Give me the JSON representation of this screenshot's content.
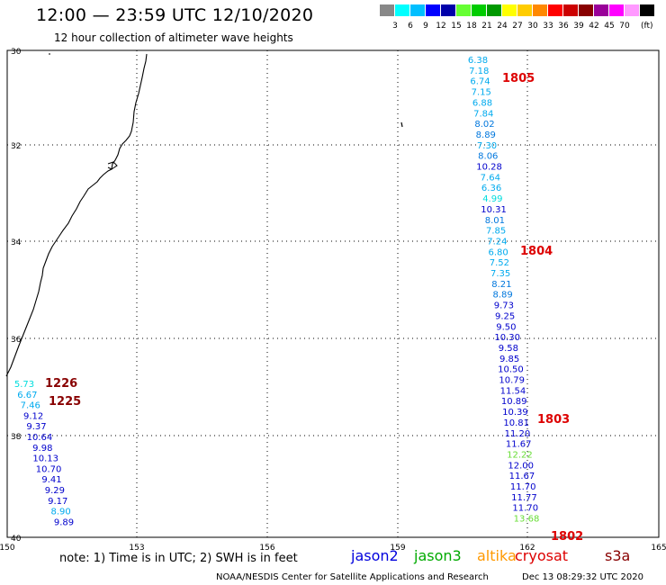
{
  "header": {
    "title": "12:00 — 23:59 UTC 12/10/2020",
    "subtitle": "12 hour collection of altimeter wave heights"
  },
  "legend": {
    "colors": [
      "#888888",
      "#00ffff",
      "#00bfff",
      "#0000ff",
      "#0000aa",
      "#66ff33",
      "#00cc00",
      "#009900",
      "#ffff00",
      "#ffcc00",
      "#ff8800",
      "#ff0000",
      "#cc0000",
      "#880000",
      "#990099",
      "#ff00ff",
      "#ff99ff",
      "#000000"
    ],
    "labels": [
      "3",
      "6",
      "9",
      "12",
      "15",
      "18",
      "21",
      "24",
      "27",
      "30",
      "33",
      "36",
      "39",
      "42",
      "45",
      "70"
    ],
    "unit": "(ft)"
  },
  "map": {
    "lat_labels": [
      "30",
      "32",
      "34",
      "36",
      "38",
      "40"
    ],
    "lon_labels": [
      "150",
      "153",
      "156",
      "159",
      "162",
      "165"
    ]
  },
  "tracks": [
    {
      "color_key": "east",
      "points": [
        {
          "v": "6.38",
          "c": "#00aaee"
        },
        {
          "v": "7.18",
          "c": "#00aaee"
        },
        {
          "v": "6.74",
          "c": "#00aaee"
        },
        {
          "v": "7.15",
          "c": "#00aaee"
        },
        {
          "v": "6.88",
          "c": "#00aaee"
        },
        {
          "v": "7.84",
          "c": "#00aaee"
        },
        {
          "v": "8.02",
          "c": "#0077dd"
        },
        {
          "v": "8.89",
          "c": "#0077dd"
        },
        {
          "v": "7.30",
          "c": "#00aaee"
        },
        {
          "v": "8.06",
          "c": "#0077dd"
        },
        {
          "v": "10.28",
          "c": "#0000cc"
        },
        {
          "v": "7.64",
          "c": "#00aaee"
        },
        {
          "v": "6.36",
          "c": "#00aaee"
        },
        {
          "v": "4.99",
          "c": "#00dddd"
        },
        {
          "v": "10.31",
          "c": "#0000cc"
        },
        {
          "v": "8.01",
          "c": "#0077dd"
        },
        {
          "v": "7.85",
          "c": "#00aaee"
        },
        {
          "v": "7.24",
          "c": "#00aaee"
        },
        {
          "v": "6.80",
          "c": "#00aaee"
        },
        {
          "v": "7.52",
          "c": "#00aaee"
        },
        {
          "v": "7.35",
          "c": "#00aaee"
        },
        {
          "v": "8.21",
          "c": "#0077dd"
        },
        {
          "v": "8.89",
          "c": "#0077dd"
        },
        {
          "v": "9.73",
          "c": "#0000cc"
        },
        {
          "v": "9.25",
          "c": "#0000cc"
        },
        {
          "v": "9.50",
          "c": "#0000cc"
        },
        {
          "v": "10.30",
          "c": "#0000cc"
        },
        {
          "v": "9.58",
          "c": "#0000cc"
        },
        {
          "v": "9.85",
          "c": "#0000cc"
        },
        {
          "v": "10.50",
          "c": "#0000cc"
        },
        {
          "v": "10.79",
          "c": "#0000cc"
        },
        {
          "v": "11.54",
          "c": "#0000cc"
        },
        {
          "v": "10.89",
          "c": "#0000cc"
        },
        {
          "v": "10.39",
          "c": "#0000cc"
        },
        {
          "v": "10.81",
          "c": "#0000cc"
        },
        {
          "v": "11.20",
          "c": "#0000cc"
        },
        {
          "v": "11.67",
          "c": "#0000cc"
        },
        {
          "v": "12.22",
          "c": "#66dd33"
        },
        {
          "v": "12.00",
          "c": "#0000cc"
        },
        {
          "v": "11.67",
          "c": "#0000cc"
        },
        {
          "v": "11.70",
          "c": "#0000cc"
        },
        {
          "v": "11.77",
          "c": "#0000cc"
        },
        {
          "v": "11.70",
          "c": "#0000cc"
        },
        {
          "v": "13.68",
          "c": "#66dd33"
        }
      ]
    },
    {
      "color_key": "west",
      "points": [
        {
          "v": "5.73",
          "c": "#00dddd"
        },
        {
          "v": "6.67",
          "c": "#00aaee"
        },
        {
          "v": "7.46",
          "c": "#00aaee"
        },
        {
          "v": "9.12",
          "c": "#0000cc"
        },
        {
          "v": "9.37",
          "c": "#0000cc"
        },
        {
          "v": "10.64",
          "c": "#0000cc"
        },
        {
          "v": "9.98",
          "c": "#0000cc"
        },
        {
          "v": "10.13",
          "c": "#0000cc"
        },
        {
          "v": "10.70",
          "c": "#0000cc"
        },
        {
          "v": "9.41",
          "c": "#0000cc"
        },
        {
          "v": "9.29",
          "c": "#0000cc"
        },
        {
          "v": "9.17",
          "c": "#0000cc"
        },
        {
          "v": "8.90",
          "c": "#00aaee"
        },
        {
          "v": "9.89",
          "c": "#0000cc"
        }
      ]
    }
  ],
  "time_labels": [
    {
      "t": "1805",
      "c": "#dd0000"
    },
    {
      "t": "1804",
      "c": "#dd0000"
    },
    {
      "t": "1803",
      "c": "#dd0000"
    },
    {
      "t": "1802",
      "c": "#dd0000"
    },
    {
      "t": "1226",
      "c": "#880000"
    },
    {
      "t": "1225",
      "c": "#880000"
    }
  ],
  "footer": {
    "note": "note:  1) Time is in UTC;  2) SWH is in feet",
    "satellites": [
      {
        "name": "jason2",
        "color": "#0000dd"
      },
      {
        "name": "jason3",
        "color": "#00aa00"
      },
      {
        "name": "altika",
        "color": "#ff9900"
      },
      {
        "name": "cryosat",
        "color": "#dd0000"
      },
      {
        "name": "s3a",
        "color": "#880000"
      }
    ],
    "credit": "NOAA/NESDIS Center for Satellite Applications and Research",
    "timestamp": "Dec 13 08:29:32 UTC 2020"
  }
}
